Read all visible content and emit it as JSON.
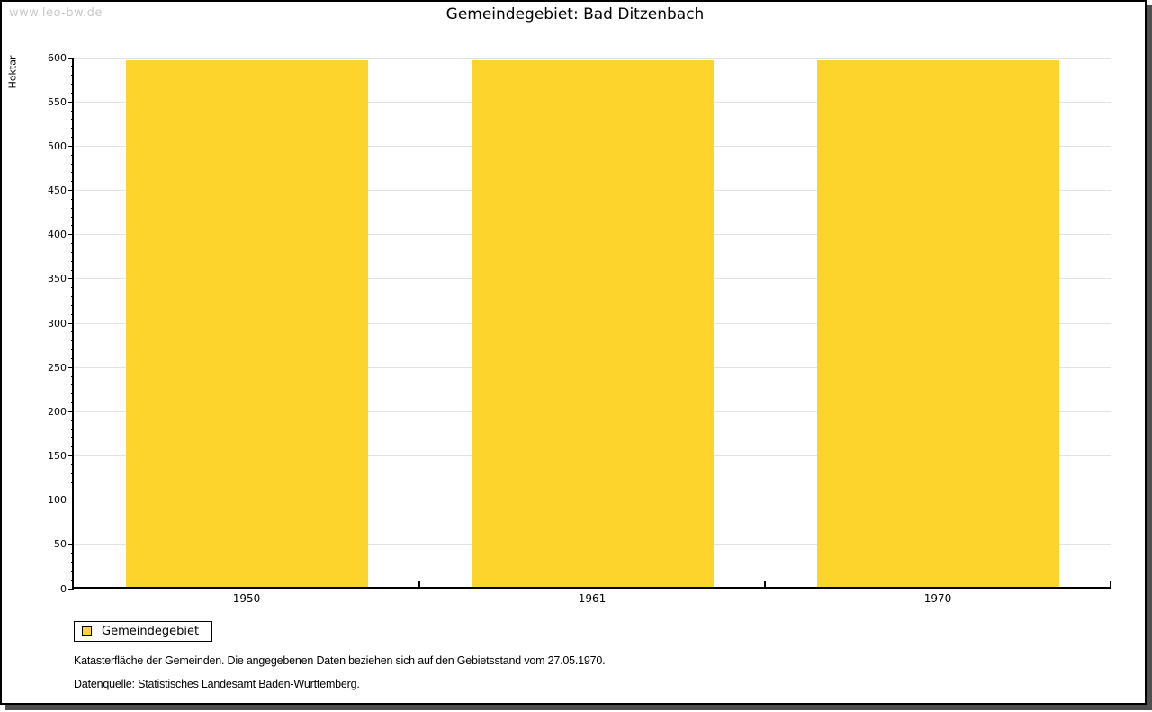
{
  "watermark": "www.leo-bw.de",
  "title": "Gemeindegebiet: Bad Ditzenbach",
  "chart_data": {
    "type": "bar",
    "title": "Gemeindegebiet: Bad Ditzenbach",
    "categories": [
      "1950",
      "1961",
      "1970"
    ],
    "series": [
      {
        "name": "Gemeindegebiet",
        "values": [
          596,
          596,
          596
        ]
      }
    ],
    "xlabel": "",
    "ylabel": "Hektar",
    "ylim": [
      0,
      600
    ],
    "y_major_step": 50,
    "y_minor_step": 10,
    "grid": "horizontal-major",
    "legend_position": "bottom-left",
    "bar_color": "#fdd42c"
  },
  "legend": {
    "items": [
      {
        "label": "Gemeindegebiet",
        "color": "#fdd42c"
      }
    ]
  },
  "footer": {
    "line1": "Katasterfläche der Gemeinden. Die angegebenen Daten beziehen sich auf den Gebietsstand vom 27.05.1970.",
    "line2": "Datenquelle: Statistisches Landesamt Baden-Württemberg."
  },
  "colors": {
    "bar": "#fdd42c",
    "gridline": "#e2e2e2",
    "axis": "#000000",
    "frame_shadow": "#4f4f4f",
    "watermark": "#c9c9c9",
    "background": "#ffffff"
  }
}
